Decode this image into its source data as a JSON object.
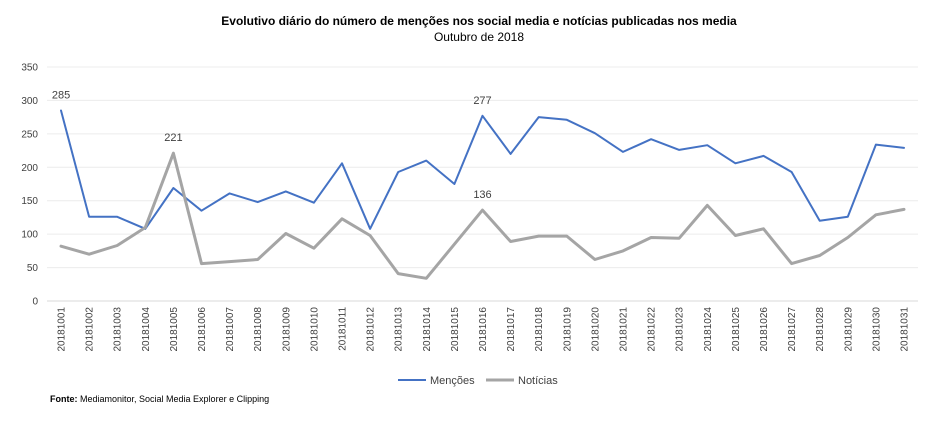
{
  "chart_data": {
    "type": "line",
    "title": "Evolutivo  diário do número de menções nos social  media e notícias  publicadas  nos media",
    "subtitle": "Outubro de 2018",
    "categories": [
      "20181001",
      "20181002",
      "20181003",
      "20181004",
      "20181005",
      "20181006",
      "20181007",
      "20181008",
      "20181009",
      "20181010",
      "20181011",
      "20181012",
      "20181013",
      "20181014",
      "20181015",
      "20181016",
      "20181017",
      "20181018",
      "20181019",
      "20181020",
      "20181021",
      "20181022",
      "20181023",
      "20181024",
      "20181025",
      "20181026",
      "20181027",
      "20181028",
      "20181029",
      "20181030",
      "20181031"
    ],
    "series": [
      {
        "name": "Menções",
        "color": "#4472C4",
        "values": [
          285,
          126,
          126,
          108,
          169,
          135,
          161,
          148,
          164,
          147,
          206,
          108,
          193,
          210,
          175,
          277,
          220,
          275,
          271,
          251,
          223,
          242,
          226,
          233,
          206,
          217,
          193,
          120,
          126,
          234,
          229
        ]
      },
      {
        "name": "Notícias",
        "color": "#A5A5A5",
        "values": [
          82,
          70,
          83,
          110,
          221,
          56,
          59,
          62,
          101,
          79,
          123,
          98,
          41,
          34,
          85,
          136,
          89,
          97,
          97,
          62,
          75,
          95,
          94,
          143,
          98,
          108,
          56,
          68,
          95,
          129,
          137
        ]
      }
    ],
    "annotations": [
      {
        "series": 0,
        "index": 0,
        "label": "285"
      },
      {
        "series": 1,
        "index": 4,
        "label": "221"
      },
      {
        "series": 0,
        "index": 15,
        "label": "277"
      },
      {
        "series": 1,
        "index": 15,
        "label": "136"
      }
    ],
    "ylim": [
      0,
      350
    ],
    "yticks": [
      0,
      50,
      100,
      150,
      200,
      250,
      300,
      350
    ],
    "ytick_labels": [
      "0",
      "50",
      "100",
      "150",
      "200",
      "250",
      "300",
      "350"
    ],
    "xlabel": "",
    "ylabel": "",
    "grid": true,
    "legend_position": "bottom",
    "source_label": "Fonte:",
    "source_text": " Mediamonitor, Social Media Explorer e Clipping"
  }
}
